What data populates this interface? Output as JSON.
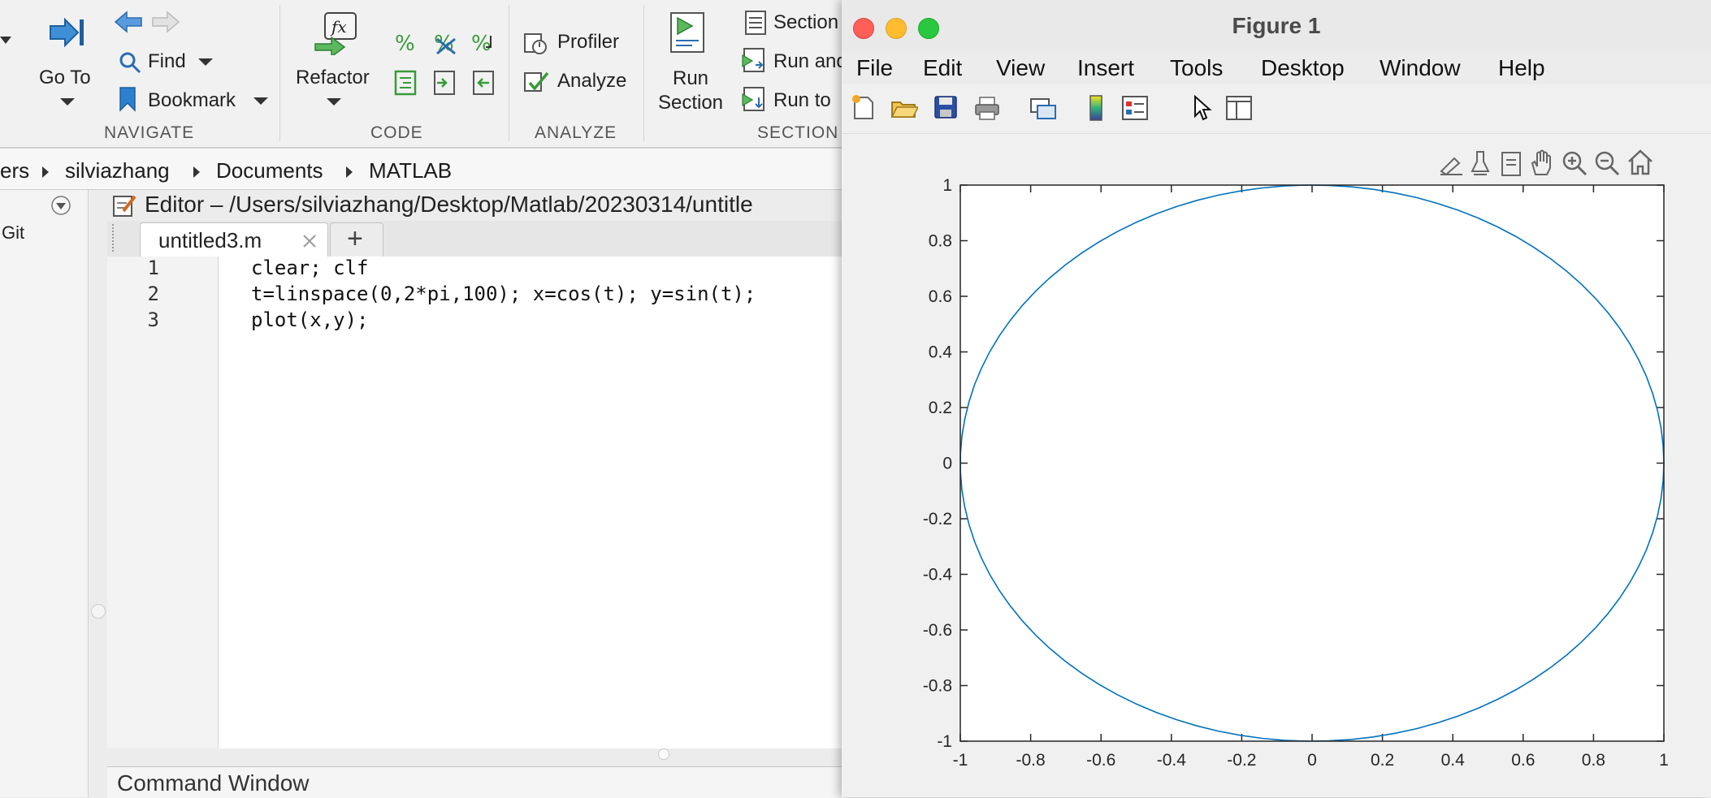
{
  "toolstrip": {
    "navigate": {
      "go_to": "Go To",
      "find": "Find",
      "bookmark": "Bookmark",
      "section_label": "NAVIGATE"
    },
    "code": {
      "refactor": "Refactor",
      "section_label": "CODE"
    },
    "analyze": {
      "profiler": "Profiler",
      "analyze": "Analyze",
      "section_label": "ANALYZE"
    },
    "section": {
      "run_section": "Run Section",
      "section_item": "Section",
      "run_and": "Run and",
      "run_to": "Run to",
      "section_label": "SECTION"
    }
  },
  "breadcrumb": [
    "ers",
    "silviazhang",
    "Documents",
    "MATLAB"
  ],
  "left_panel": {
    "item": "Git"
  },
  "editor": {
    "title": "Editor – /Users/silviazhang/Desktop/Matlab/20230314/untitle",
    "tab_label": "untitled3.m",
    "add_tab": "+",
    "lines": [
      {
        "num": "1",
        "code": "clear; clf"
      },
      {
        "num": "2",
        "code": "t=linspace(0,2*pi,100); x=cos(t); y=sin(t);"
      },
      {
        "num": "3",
        "code": "plot(x,y);"
      }
    ]
  },
  "command_window": {
    "title": "Command Window"
  },
  "figure": {
    "title": "Figure 1",
    "menu": [
      "File",
      "Edit",
      "View",
      "Insert",
      "Tools",
      "Desktop",
      "Window",
      "Help"
    ]
  },
  "chart_data": {
    "type": "line",
    "title": "",
    "xlabel": "",
    "ylabel": "",
    "xlim": [
      -1,
      1
    ],
    "ylim": [
      -1,
      1
    ],
    "xticks": [
      -1,
      -0.8,
      -0.6,
      -0.4,
      -0.2,
      0,
      0.2,
      0.4,
      0.6,
      0.8,
      1
    ],
    "yticks": [
      -1,
      -0.8,
      -0.6,
      -0.4,
      -0.2,
      0,
      0.2,
      0.4,
      0.6,
      0.8,
      1
    ],
    "xtick_labels": [
      "-1",
      "-0.8",
      "-0.6",
      "-0.4",
      "-0.2",
      "0",
      "0.2",
      "0.4",
      "0.6",
      "0.8",
      "1"
    ],
    "ytick_labels": [
      "-1",
      "-0.8",
      "-0.6",
      "-0.4",
      "-0.2",
      "0",
      "0.2",
      "0.4",
      "0.6",
      "0.8",
      "1"
    ],
    "grid": false,
    "series": [
      {
        "color": "#0072bd",
        "x": [
          1,
          0.998,
          0.992,
          0.9819,
          0.9679,
          0.9501,
          0.9284,
          0.9029,
          0.8738,
          0.8413,
          0.8053,
          0.766,
          0.7237,
          0.6785,
          0.6306,
          0.5801,
          0.5272,
          0.4723,
          0.4154,
          0.3569,
          0.2969,
          0.2358,
          0.1736,
          0.1108,
          0.0476,
          -0.0159,
          -0.0792,
          -0.1423,
          -0.2048,
          -0.2665,
          -0.3271,
          -0.3863,
          -0.4441,
          -0.5,
          -0.5539,
          -0.6056,
          -0.6549,
          -0.7015,
          -0.7453,
          -0.7861,
          -0.8237,
          -0.858,
          -0.8888,
          -0.9161,
          -0.9397,
          -0.9595,
          -0.9754,
          -0.9874,
          -0.9955,
          -0.9995,
          -0.9995,
          -0.9955,
          -0.9874,
          -0.9754,
          -0.9595,
          -0.9397,
          -0.9161,
          -0.8888,
          -0.858,
          -0.8237,
          -0.7861,
          -0.7453,
          -0.7015,
          -0.6549,
          -0.6056,
          -0.5539,
          -0.5,
          -0.4441,
          -0.3863,
          -0.3271,
          -0.2665,
          -0.2048,
          -0.1423,
          -0.0792,
          -0.0159,
          0.0476,
          0.1108,
          0.1736,
          0.2358,
          0.2969,
          0.3569,
          0.4154,
          0.4723,
          0.5272,
          0.5801,
          0.6306,
          0.6785,
          0.7237,
          0.766,
          0.8053,
          0.8413,
          0.8738,
          0.9029,
          0.9284,
          0.9501,
          0.9679,
          0.9819,
          0.992,
          0.998,
          1
        ],
        "y": [
          0,
          0.0634,
          0.1266,
          0.1893,
          0.2511,
          0.312,
          0.3717,
          0.4298,
          0.4862,
          0.5406,
          0.5929,
          0.6428,
          0.6901,
          0.7346,
          0.7761,
          0.8146,
          0.8497,
          0.8815,
          0.9096,
          0.9341,
          0.9549,
          0.9718,
          0.9848,
          0.9938,
          0.9989,
          0.9999,
          0.9969,
          0.9898,
          0.9788,
          0.9638,
          0.945,
          0.9224,
          0.896,
          0.866,
          0.8326,
          0.7958,
          0.7557,
          0.7127,
          0.6668,
          0.6182,
          0.5671,
          0.5137,
          0.4582,
          0.4009,
          0.342,
          0.2817,
          0.2203,
          0.158,
          0.0951,
          0.0317,
          -0.0317,
          -0.0951,
          -0.158,
          -0.2203,
          -0.2817,
          -0.342,
          -0.4009,
          -0.4582,
          -0.5137,
          -0.5671,
          -0.6182,
          -0.6668,
          -0.7127,
          -0.7557,
          -0.7958,
          -0.8326,
          -0.866,
          -0.896,
          -0.9224,
          -0.945,
          -0.9638,
          -0.9788,
          -0.9898,
          -0.9969,
          -0.9999,
          -0.9989,
          -0.9938,
          -0.9848,
          -0.9718,
          -0.9549,
          -0.9341,
          -0.9096,
          -0.8815,
          -0.8497,
          -0.8146,
          -0.7761,
          -0.7346,
          -0.6901,
          -0.6428,
          -0.5929,
          -0.5406,
          -0.4862,
          -0.4298,
          -0.3717,
          -0.312,
          -0.2511,
          -0.1893,
          -0.1266,
          -0.0634,
          0
        ]
      }
    ]
  }
}
